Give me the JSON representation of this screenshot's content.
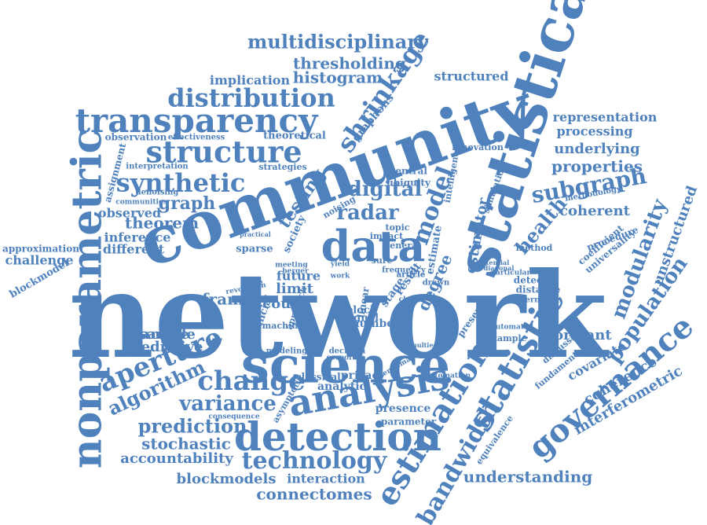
{
  "words": [
    "network",
    "science",
    "community",
    "statistical",
    "data",
    "nonparametric",
    "detection",
    "analysis",
    "estimation",
    "statistic",
    "technology",
    "transparency",
    "structure",
    "synthetic",
    "change",
    "aperture",
    "distribution",
    "shrinkage",
    "multidisciplinary",
    "governance",
    "bandwidth",
    "model",
    "variance",
    "prediction",
    "algorithm",
    "subgraph",
    "modularity",
    "population",
    "health",
    "digital",
    "radar",
    "graph",
    "theorem",
    "frame",
    "sample",
    "predictive",
    "stochastic",
    "accountability",
    "blockmodels",
    "interaction",
    "connectomes",
    "understanding",
    "interferometric",
    "coherence",
    "covariate",
    "formant",
    "properties",
    "underlying",
    "processing",
    "representation",
    "coherent",
    "unstructured",
    "thresholding",
    "histogram",
    "implication",
    "structured",
    "observed",
    "inference",
    "different",
    "challenge",
    "approximation",
    "blockmodel",
    "count",
    "limit",
    "future",
    "number",
    "presence",
    "parameter",
    "privacy",
    "classical",
    "analytic",
    "degree",
    "estimator",
    "testing",
    "graphons",
    "theoretical",
    "observation",
    "effectiveness",
    "assignment",
    "interpretation",
    "strategies",
    "denoising",
    "communities",
    "central",
    "ubiquity",
    "impact",
    "general",
    "noising",
    "topic",
    "stage",
    "result",
    "method",
    "detector",
    "distance",
    "alternative",
    "automated",
    "example",
    "discussion",
    "fundamental",
    "equivalence",
    "simulation",
    "innovation",
    "intelligence",
    "frequency",
    "article",
    "drawn",
    "particular",
    "potential",
    "diagonal",
    "coefficient",
    "universality",
    "procedure",
    "methodology",
    "signal",
    "block",
    "linear",
    "machine",
    "artificial",
    "modeling",
    "decision",
    "corporate",
    "benchmark",
    "automation",
    "multiedge",
    "consequence",
    "asymptotic",
    "approach",
    "revolution",
    "growing",
    "sparse",
    "society",
    "practical",
    "meeting",
    "berger",
    "sure",
    "yield",
    "work",
    "class",
    "present",
    "estimate",
    "sample",
    "article"
  ],
  "colors": {
    "word": "#4f81bd",
    "background": "#ffffff"
  }
}
